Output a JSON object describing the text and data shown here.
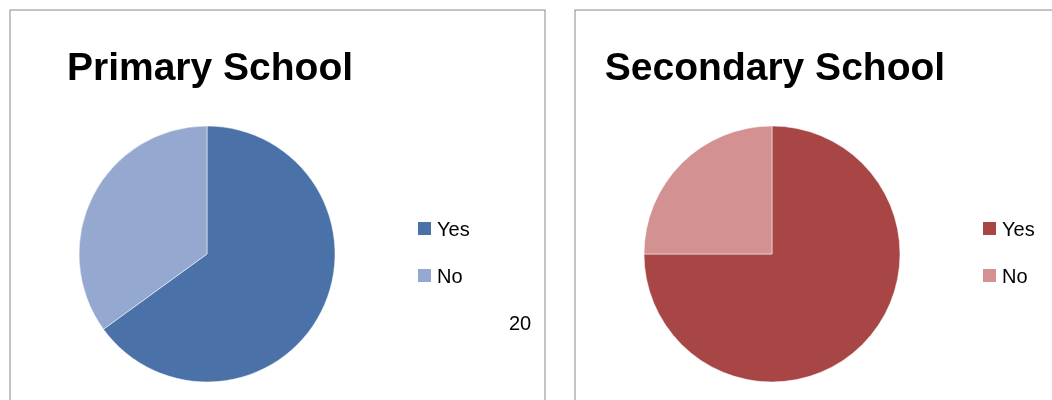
{
  "chart_data": [
    {
      "type": "pie",
      "title": "Primary School",
      "categories": [
        "Yes",
        "No"
      ],
      "values": [
        65,
        35
      ],
      "colors": [
        "#4a72a8",
        "#95a9d0"
      ],
      "legend": "right",
      "annotations": [
        "20"
      ]
    },
    {
      "type": "pie",
      "title": "Secondary School",
      "categories": [
        "Yes",
        "No"
      ],
      "values": [
        75,
        25
      ],
      "colors": [
        "#a84646",
        "#d39191"
      ],
      "legend": "right"
    }
  ]
}
